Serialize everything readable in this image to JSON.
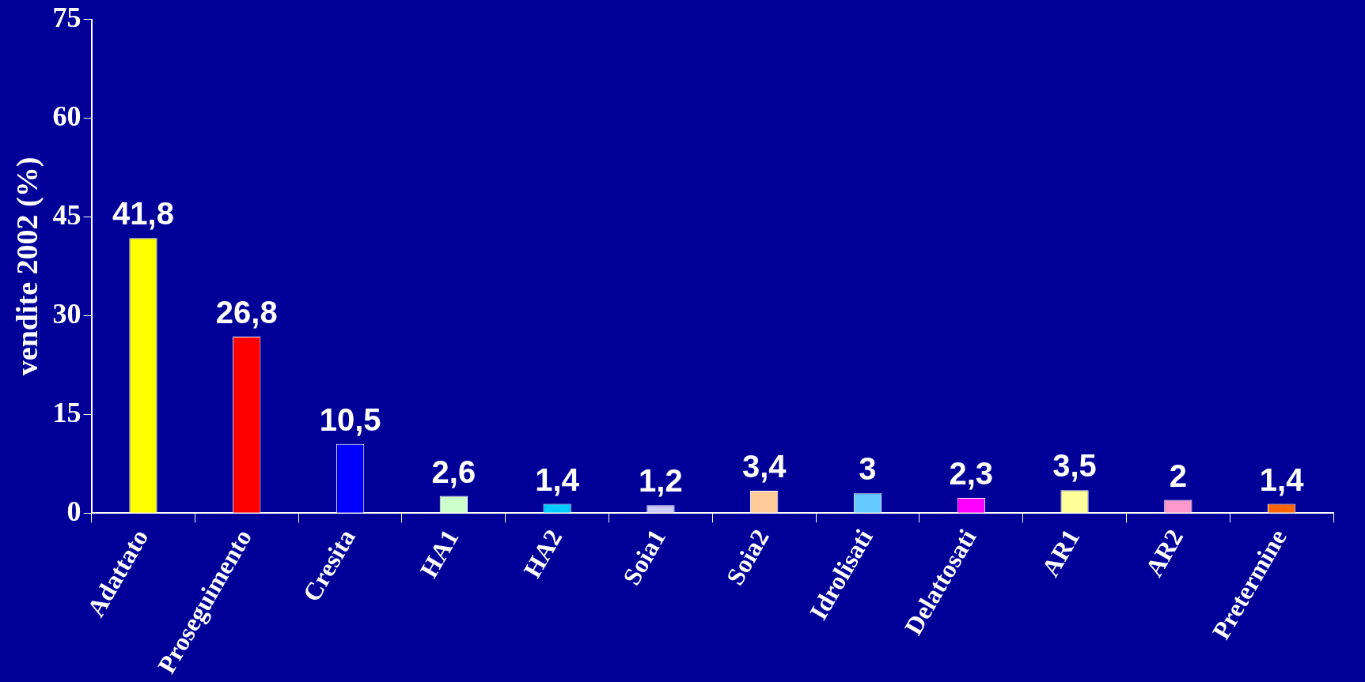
{
  "chart_data": {
    "type": "bar",
    "ylabel": "vendite 2002 (%)",
    "categories": [
      "Adattato",
      "Proseguimento",
      "Cresita",
      "HA1",
      "HA2",
      "Soia1",
      "Soia2",
      "Idrolisati",
      "Delattosati",
      "AR1",
      "AR2",
      "Pretermine"
    ],
    "values": [
      41.8,
      26.8,
      10.5,
      2.6,
      1.4,
      1.2,
      3.4,
      3,
      2.3,
      3.5,
      2,
      1.4
    ],
    "value_labels": [
      "41,8",
      "26,8",
      "10,5",
      "2,6",
      "1,4",
      "1,2",
      "3,4",
      "3",
      "2,3",
      "3,5",
      "2",
      "1,4"
    ],
    "colors": [
      "#ffff00",
      "#ff0000",
      "#0000ff",
      "#ccffcc",
      "#00ccff",
      "#ccccff",
      "#ffcc99",
      "#66ccff",
      "#ff00ff",
      "#ffff99",
      "#ff99cc",
      "#ff6600"
    ],
    "ylim": [
      0,
      75
    ],
    "yticks": [
      0,
      15,
      30,
      45,
      60,
      75
    ]
  }
}
